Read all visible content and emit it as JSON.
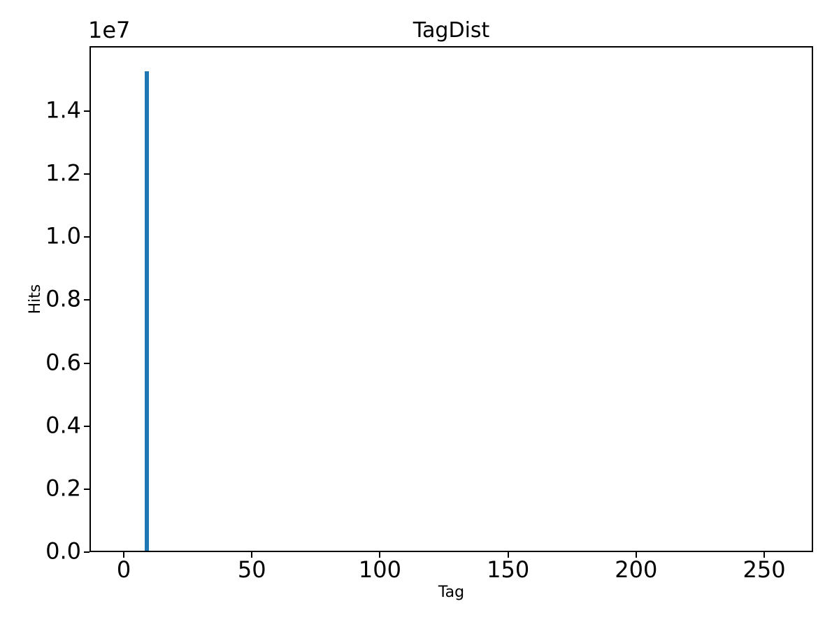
{
  "figure": {
    "background": "#ffffff",
    "text_color": "#000000"
  },
  "chart_data": {
    "type": "bar",
    "title": "TagDist",
    "xlabel": "Tag",
    "ylabel": "Hits",
    "y_offset_text": "1e7",
    "grid": false,
    "legend": null,
    "xlim": [
      -13.4,
      269.1
    ],
    "ylim": [
      0,
      16060000
    ],
    "x": [
      9
    ],
    "values": [
      15260000
    ],
    "bar_width": 1.6,
    "bar_color": "#1f77b4",
    "x_ticks": [
      {
        "value": 0,
        "label": "0"
      },
      {
        "value": 50,
        "label": "50"
      },
      {
        "value": 100,
        "label": "100"
      },
      {
        "value": 150,
        "label": "150"
      },
      {
        "value": 200,
        "label": "200"
      },
      {
        "value": 250,
        "label": "250"
      }
    ],
    "y_ticks": [
      {
        "value": 0,
        "label": "0.0"
      },
      {
        "value": 2000000,
        "label": "0.2"
      },
      {
        "value": 4000000,
        "label": "0.4"
      },
      {
        "value": 6000000,
        "label": "0.6"
      },
      {
        "value": 8000000,
        "label": "0.8"
      },
      {
        "value": 10000000,
        "label": "1.0"
      },
      {
        "value": 12000000,
        "label": "1.2"
      },
      {
        "value": 14000000,
        "label": "1.4"
      }
    ]
  }
}
